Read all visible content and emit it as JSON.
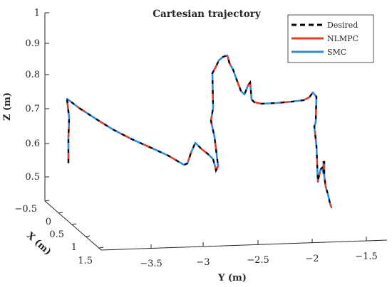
{
  "chart_data": {
    "type": "line",
    "title": "Cartesian trajectory",
    "xlabel": "X (m)",
    "ylabel": "Y (m)",
    "zlabel": "Z (m)",
    "z_ticks": [
      "0.5",
      "0.6",
      "0.7",
      "0.8",
      "0.9",
      "1"
    ],
    "x_ticks": [
      "−0.5",
      "0",
      "0.5",
      "1",
      "1.5"
    ],
    "y_ticks": [
      "−3.5",
      "−3",
      "−2.5",
      "−2",
      "−1.5"
    ],
    "zlim": [
      0.45,
      1.0
    ],
    "legend_position": "top-right",
    "series": [
      {
        "name": "Desired",
        "color": "#000000",
        "style": "dashed"
      },
      {
        "name": "NLMPC",
        "color": "#ee3b24",
        "style": "solid"
      },
      {
        "name": "SMC",
        "color": "#2f8be8",
        "style": "solid"
      }
    ],
    "trajectory_xyz": [
      [
        1.5,
        -3.6,
        0.56
      ],
      [
        1.5,
        -3.6,
        0.7
      ],
      [
        1.5,
        -3.6,
        0.77
      ],
      [
        1.3,
        -3.35,
        0.65
      ],
      [
        1.2,
        -3.1,
        0.55
      ],
      [
        1.2,
        -3.0,
        0.57
      ],
      [
        1.2,
        -2.95,
        0.55
      ],
      [
        1.2,
        -2.85,
        0.55
      ],
      [
        1.2,
        -2.9,
        0.6
      ],
      [
        1.2,
        -2.9,
        0.85
      ],
      [
        1.2,
        -2.8,
        0.9
      ],
      [
        1.2,
        -2.7,
        0.91
      ],
      [
        1.2,
        -2.65,
        0.87
      ],
      [
        1.2,
        -2.6,
        0.82
      ],
      [
        1.2,
        -2.55,
        0.82
      ],
      [
        1.2,
        -2.5,
        0.79
      ],
      [
        1.2,
        -2.4,
        0.75
      ],
      [
        1.2,
        -2.15,
        0.76
      ],
      [
        1.2,
        -1.95,
        0.78
      ],
      [
        1.2,
        -1.9,
        0.55
      ],
      [
        1.2,
        -1.85,
        0.58
      ],
      [
        1.2,
        -1.85,
        0.5
      ],
      [
        1.2,
        -1.8,
        0.45
      ]
    ]
  }
}
